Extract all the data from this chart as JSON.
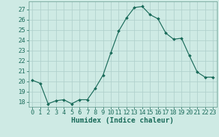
{
  "x": [
    0,
    1,
    2,
    3,
    4,
    5,
    6,
    7,
    8,
    9,
    10,
    11,
    12,
    13,
    14,
    15,
    16,
    17,
    18,
    19,
    20,
    21,
    22,
    23
  ],
  "y": [
    20.1,
    19.8,
    17.8,
    18.1,
    18.2,
    17.8,
    18.2,
    18.2,
    19.3,
    20.6,
    22.8,
    24.9,
    26.2,
    27.2,
    27.3,
    26.5,
    26.1,
    24.7,
    24.1,
    24.2,
    22.5,
    20.9,
    20.4,
    20.4
  ],
  "line_color": "#1a6b5a",
  "marker": "D",
  "marker_size": 2.0,
  "bg_color": "#ceeae4",
  "grid_color": "#b0d0cc",
  "xlabel": "Humidex (Indice chaleur)",
  "ylabel_ticks": [
    18,
    19,
    20,
    21,
    22,
    23,
    24,
    25,
    26,
    27
  ],
  "xlim": [
    -0.5,
    23.5
  ],
  "ylim": [
    17.5,
    27.8
  ],
  "xlabel_fontsize": 7.5,
  "tick_fontsize": 6.5
}
